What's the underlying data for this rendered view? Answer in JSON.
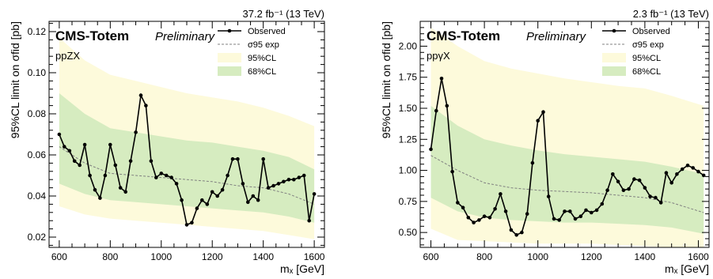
{
  "chart_data": [
    {
      "type": "line",
      "panel": "left",
      "top_label": "37.2 fb⁻¹ (13 TeV)",
      "collab": "CMS-Totem",
      "prelim": "Preliminary",
      "process": "ppZX",
      "xlabel": "mₓ [GeV]",
      "ylabel": "95%CL limit on σfid [pb]",
      "xlim": [
        560,
        1640
      ],
      "ylim": [
        0.015,
        0.125
      ],
      "xticks": [
        600,
        800,
        1000,
        1200,
        1400,
        1600
      ],
      "yticks": [
        0.02,
        0.04,
        0.06,
        0.08,
        0.1,
        0.12
      ],
      "ytick_labels": [
        "0.02",
        "0.04",
        "0.06",
        "0.08",
        "0.10",
        "0.12"
      ],
      "xtick_labels": [
        "600",
        "800",
        "1000",
        "1200",
        "1400",
        "1600"
      ],
      "legend": [
        "Observed",
        "σ95 exp",
        "95%CL",
        "68%CL"
      ],
      "observed_x": [
        600,
        620,
        640,
        660,
        680,
        700,
        720,
        740,
        760,
        780,
        800,
        820,
        840,
        860,
        880,
        900,
        920,
        940,
        960,
        980,
        1000,
        1020,
        1040,
        1060,
        1080,
        1100,
        1120,
        1140,
        1160,
        1180,
        1200,
        1220,
        1240,
        1260,
        1280,
        1300,
        1320,
        1340,
        1360,
        1380,
        1400,
        1420,
        1440,
        1460,
        1480,
        1500,
        1520,
        1540,
        1560,
        1580,
        1600
      ],
      "observed_y": [
        0.07,
        0.064,
        0.062,
        0.057,
        0.055,
        0.065,
        0.05,
        0.043,
        0.039,
        0.05,
        0.065,
        0.055,
        0.044,
        0.042,
        0.057,
        0.071,
        0.089,
        0.084,
        0.057,
        0.049,
        0.051,
        0.05,
        0.049,
        0.046,
        0.038,
        0.026,
        0.027,
        0.034,
        0.038,
        0.036,
        0.042,
        0.04,
        0.043,
        0.05,
        0.058,
        0.058,
        0.046,
        0.037,
        0.04,
        0.038,
        0.058,
        0.044,
        0.045,
        0.046,
        0.047,
        0.048,
        0.048,
        0.049,
        0.05,
        0.028,
        0.041
      ],
      "expected_x": [
        600,
        700,
        800,
        900,
        1000,
        1100,
        1200,
        1300,
        1400,
        1500,
        1600
      ],
      "expected_y": [
        0.064,
        0.056,
        0.051,
        0.05,
        0.049,
        0.048,
        0.047,
        0.045,
        0.044,
        0.041,
        0.036
      ],
      "band95_x": [
        600,
        700,
        800,
        900,
        1000,
        1100,
        1200,
        1300,
        1400,
        1500,
        1600
      ],
      "band95_lo": [
        0.035,
        0.031,
        0.029,
        0.028,
        0.027,
        0.026,
        0.025,
        0.024,
        0.023,
        0.021,
        0.019
      ],
      "band95_hi": [
        0.117,
        0.106,
        0.099,
        0.096,
        0.093,
        0.09,
        0.088,
        0.086,
        0.083,
        0.079,
        0.074
      ],
      "band68_x": [
        600,
        700,
        800,
        900,
        1000,
        1100,
        1200,
        1300,
        1400,
        1500,
        1600
      ],
      "band68_lo": [
        0.046,
        0.041,
        0.038,
        0.037,
        0.036,
        0.035,
        0.034,
        0.033,
        0.032,
        0.03,
        0.027
      ],
      "band68_hi": [
        0.09,
        0.08,
        0.073,
        0.071,
        0.069,
        0.067,
        0.066,
        0.064,
        0.062,
        0.059,
        0.053
      ]
    },
    {
      "type": "line",
      "panel": "right",
      "top_label": "2.3 fb⁻¹ (13 TeV)",
      "collab": "CMS-Totem",
      "prelim": "Preliminary",
      "process": "ppγX",
      "xlabel": "mₓ [GeV]",
      "ylabel": "95%CL limit on σfid [pb]",
      "xlim": [
        560,
        1640
      ],
      "ylim": [
        0.38,
        2.2
      ],
      "xticks": [
        600,
        800,
        1000,
        1200,
        1400,
        1600
      ],
      "yticks": [
        0.5,
        0.75,
        1.0,
        1.25,
        1.5,
        1.75,
        2.0
      ],
      "ytick_labels": [
        "0.50",
        "0.75",
        "1.00",
        "1.25",
        "1.50",
        "1.75",
        "2.00"
      ],
      "xtick_labels": [
        "600",
        "800",
        "1000",
        "1200",
        "1400",
        "1600"
      ],
      "legend": [
        "Observed",
        "σ95 exp",
        "95%CL",
        "68%CL"
      ],
      "observed_x": [
        600,
        620,
        640,
        660,
        680,
        700,
        720,
        740,
        760,
        780,
        800,
        820,
        840,
        860,
        880,
        900,
        920,
        940,
        960,
        980,
        1000,
        1020,
        1040,
        1060,
        1080,
        1100,
        1120,
        1140,
        1160,
        1180,
        1200,
        1220,
        1240,
        1260,
        1280,
        1300,
        1320,
        1340,
        1360,
        1380,
        1400,
        1420,
        1440,
        1460,
        1480,
        1500,
        1520,
        1540,
        1560,
        1580,
        1600,
        1620
      ],
      "observed_y": [
        1.17,
        1.48,
        1.74,
        1.52,
        0.99,
        0.74,
        0.7,
        0.62,
        0.58,
        0.6,
        0.63,
        0.62,
        0.69,
        0.81,
        0.67,
        0.52,
        0.48,
        0.5,
        0.65,
        1.06,
        1.4,
        1.47,
        0.79,
        0.61,
        0.6,
        0.67,
        0.67,
        0.61,
        0.63,
        0.68,
        0.66,
        0.68,
        0.73,
        0.84,
        0.97,
        0.91,
        0.84,
        0.85,
        0.93,
        0.92,
        0.86,
        0.79,
        0.78,
        0.74,
        0.98,
        0.9,
        0.97,
        1.01,
        1.04,
        1.02,
        0.99,
        0.96
      ],
      "expected_x": [
        600,
        700,
        800,
        900,
        1000,
        1100,
        1200,
        1300,
        1400,
        1500,
        1620
      ],
      "expected_y": [
        1.12,
        1.0,
        0.9,
        0.86,
        0.84,
        0.83,
        0.82,
        0.8,
        0.78,
        0.74,
        0.66
      ],
      "band95_x": [
        600,
        700,
        800,
        900,
        1000,
        1100,
        1200,
        1300,
        1400,
        1500,
        1620
      ],
      "band95_lo": [
        0.53,
        0.44,
        0.43,
        0.42,
        0.41,
        0.41,
        0.41,
        0.4,
        0.39,
        0.38,
        0.34
      ],
      "band95_hi": [
        2.15,
        2.0,
        1.88,
        1.82,
        1.78,
        1.74,
        1.71,
        1.68,
        1.66,
        1.6,
        1.52
      ],
      "band68_x": [
        600,
        700,
        800,
        900,
        1000,
        1100,
        1200,
        1300,
        1400,
        1500,
        1620
      ],
      "band68_lo": [
        0.78,
        0.67,
        0.62,
        0.6,
        0.59,
        0.58,
        0.58,
        0.57,
        0.56,
        0.54,
        0.49
      ],
      "band68_hi": [
        1.52,
        1.36,
        1.25,
        1.2,
        1.16,
        1.13,
        1.11,
        1.09,
        1.07,
        1.03,
        0.97
      ]
    }
  ],
  "colors": {
    "band95": "#fdfadb",
    "band68": "#d6ecc0",
    "observed": "#000000",
    "expected": "#808080"
  }
}
